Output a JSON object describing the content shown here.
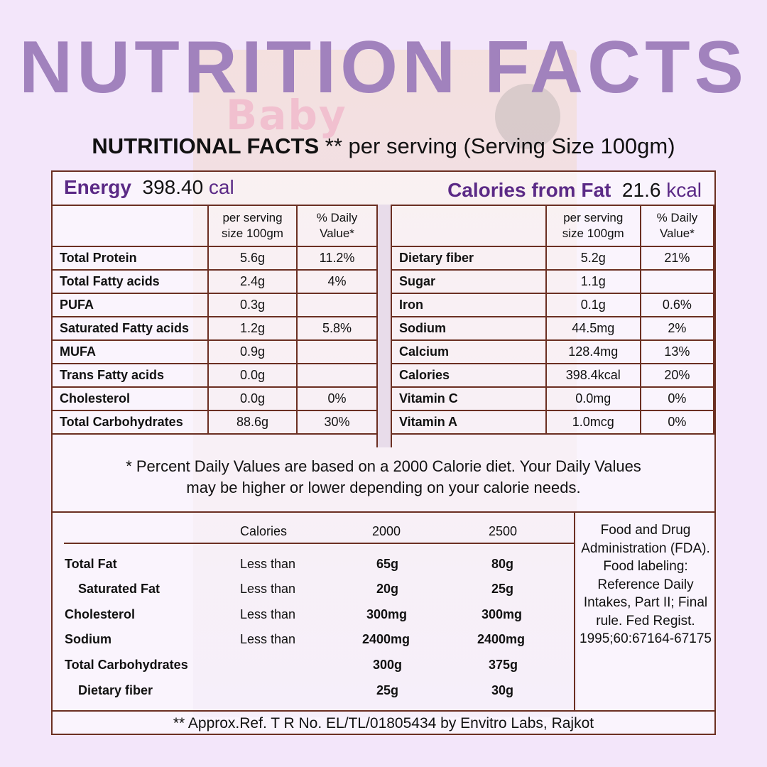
{
  "title": "NUTRITION FACTS",
  "subtitle": {
    "bold": "NUTRITIONAL FACTS",
    "rest": " ** per serving (Serving Size 100gm)"
  },
  "energy": {
    "label": "Energy",
    "value": "398.40",
    "unit": "cal"
  },
  "calories_from_fat": {
    "label": "Calories from Fat",
    "value": "21.6",
    "unit": "kcal"
  },
  "left_table": {
    "headers": [
      "",
      "per serving size 100gm",
      "% Daily Value*"
    ],
    "rows": [
      [
        "Total Protein",
        "5.6g",
        "11.2%"
      ],
      [
        "Total Fatty acids",
        "2.4g",
        "4%"
      ],
      [
        "PUFA",
        "0.3g",
        ""
      ],
      [
        "Saturated Fatty acids",
        "1.2g",
        "5.8%"
      ],
      [
        "MUFA",
        "0.9g",
        ""
      ],
      [
        "Trans Fatty acids",
        "0.0g",
        ""
      ],
      [
        "Cholesterol",
        "0.0g",
        "0%"
      ],
      [
        "Total Carbohydrates",
        "88.6g",
        "30%"
      ]
    ]
  },
  "right_table": {
    "headers": [
      "",
      "per serving size 100gm",
      "% Daily Value*"
    ],
    "rows": [
      [
        "Dietary fiber",
        "5.2g",
        "21%"
      ],
      [
        "Sugar",
        "1.1g",
        ""
      ],
      [
        "Iron",
        "0.1g",
        "0.6%"
      ],
      [
        "Sodium",
        "44.5mg",
        "2%"
      ],
      [
        "Calcium",
        "128.4mg",
        "13%"
      ],
      [
        "Calories",
        "398.4kcal",
        "20%"
      ],
      [
        "Vitamin C",
        "0.0mg",
        "0%"
      ],
      [
        "Vitamin A",
        "1.0mcg",
        "0%"
      ]
    ]
  },
  "note_line1": "* Percent Daily Values are based on a 2000 Calorie diet. Your Daily Values",
  "note_line2": "may be higher or lower depending on your calorie needs.",
  "reference": {
    "header": [
      "Calories",
      "2000",
      "2500"
    ],
    "rows": [
      {
        "name": "Total Fat",
        "cond": "Less than",
        "v1": "65g",
        "v2": "80g"
      },
      {
        "name": "Saturated Fat",
        "cond": "Less than",
        "v1": "20g",
        "v2": "25g"
      },
      {
        "name": "Cholesterol",
        "cond": "Less than",
        "v1": "300mg",
        "v2": "300mg"
      },
      {
        "name": "Sodium",
        "cond": "Less than",
        "v1": "2400mg",
        "v2": "2400mg"
      },
      {
        "name": "Total Carbohydrates",
        "cond": "",
        "v1": "300g",
        "v2": "375g"
      },
      {
        "name": "Dietary fiber",
        "cond": "",
        "v1": "25g",
        "v2": "30g"
      }
    ]
  },
  "fda_source": "Food and Drug Administration (FDA). Food labeling: Reference Daily Intakes, Part II; Final rule. Fed Regist. 1995;60:67164-67175",
  "footer": "** Approx.Ref. T R No. EL/TL/01805434 by Envitro Labs, Rajkot",
  "background_art": {
    "brand_text": "Baby"
  }
}
